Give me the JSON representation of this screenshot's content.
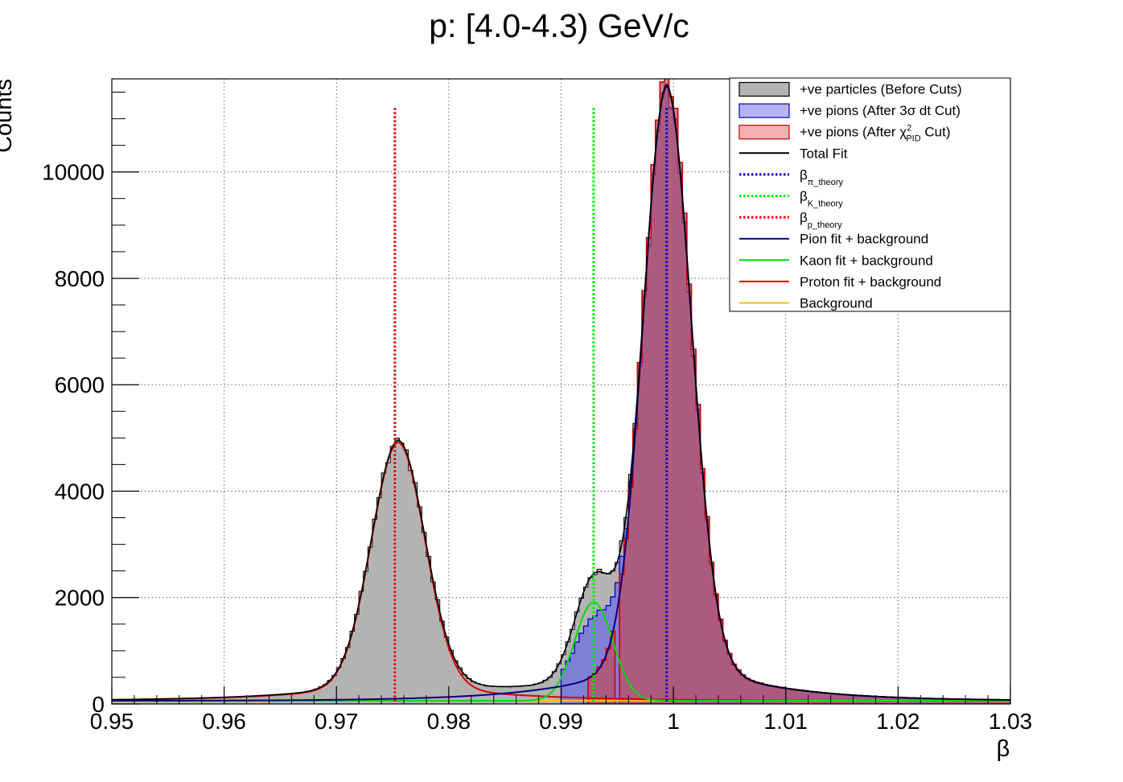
{
  "chart_data": {
    "type": "histogram",
    "title": "p: [4.0-4.3) GeV/c",
    "xlabel": "β",
    "ylabel": "Counts",
    "xlim": [
      0.95,
      1.03
    ],
    "ylim": [
      0,
      11750
    ],
    "grid": true,
    "legend_position": "top-right",
    "x_ticks": [
      "0.95",
      "0.96",
      "0.97",
      "0.98",
      "0.99",
      "1",
      "1.01",
      "1.02",
      "1.03"
    ],
    "x_tick_values": [
      0.95,
      0.96,
      0.97,
      0.98,
      0.99,
      1.0,
      1.01,
      1.02,
      1.03
    ],
    "y_ticks": [
      "0",
      "2000",
      "4000",
      "6000",
      "8000",
      "10000"
    ],
    "y_tick_values": [
      0,
      2000,
      4000,
      6000,
      8000,
      10000
    ],
    "legend": [
      {
        "label": "+ve particles (Before Cuts)",
        "kind": "box",
        "fill": "#b3b3b3",
        "stroke": "#000000"
      },
      {
        "label": "+ve pions (After 3σ dt Cut)",
        "kind": "box",
        "fill": "#b3b3f2",
        "stroke": "#0000cc"
      },
      {
        "label_pre": "+ve pions (After ",
        "label_chi": "χ",
        "label_sup": "2",
        "label_sub": "PID",
        "label_post": " Cut)",
        "kind": "box",
        "fill": "#f5b3b3",
        "stroke": "#cc0000"
      },
      {
        "label": "Total Fit",
        "kind": "line",
        "stroke": "#000000"
      },
      {
        "label": "β",
        "label_sub": "π_theory",
        "kind": "dotted",
        "stroke": "#0000cc"
      },
      {
        "label": "β",
        "label_sub": "K_theory",
        "kind": "dotted",
        "stroke": "#00ee00"
      },
      {
        "label": "β",
        "label_sub": "p_theory",
        "kind": "dotted",
        "stroke": "#ee0000"
      },
      {
        "label": "Pion fit + background",
        "kind": "line",
        "stroke": "#000080"
      },
      {
        "label": "Kaon fit + background",
        "kind": "line",
        "stroke": "#00dd00"
      },
      {
        "label": "Proton fit + background",
        "kind": "line",
        "stroke": "#dd0000"
      },
      {
        "label": "Background",
        "kind": "line",
        "stroke": "#f5c000"
      }
    ],
    "theory_lines": [
      {
        "name": "β_π_theory",
        "x": 0.9994,
        "ytop": 11200,
        "color": "#0000cc"
      },
      {
        "name": "β_K_theory",
        "x": 0.9929,
        "ytop": 11200,
        "color": "#00ee00"
      },
      {
        "name": "β_p_theory",
        "x": 0.9752,
        "ytop": 11200,
        "color": "#ee0000"
      }
    ],
    "model": {
      "pion": {
        "amp": 10600,
        "mean": 0.9994,
        "sigma_left": 0.0021,
        "sigma_right": 0.0022,
        "tail_amp": 0.09,
        "tail_scale": 0.0075
      },
      "kaon": {
        "amp": 1850,
        "mean": 0.9929,
        "sigma": 0.0017
      },
      "proton": {
        "amp": 4480,
        "mean": 0.9755,
        "sigma": 0.0024,
        "tail_amp": 0.085,
        "tail_scale": 0.0085
      },
      "background": {
        "level": 60
      },
      "dt_cut_range": [
        0.9901,
        1.0306
      ],
      "chi2_cut_ranges": [
        [
          0.99235,
          0.9946
        ],
        [
          0.9952,
          1.0306
        ]
      ],
      "bins": {
        "start": 0.95,
        "end": 1.03,
        "width": 0.0004
      }
    }
  }
}
